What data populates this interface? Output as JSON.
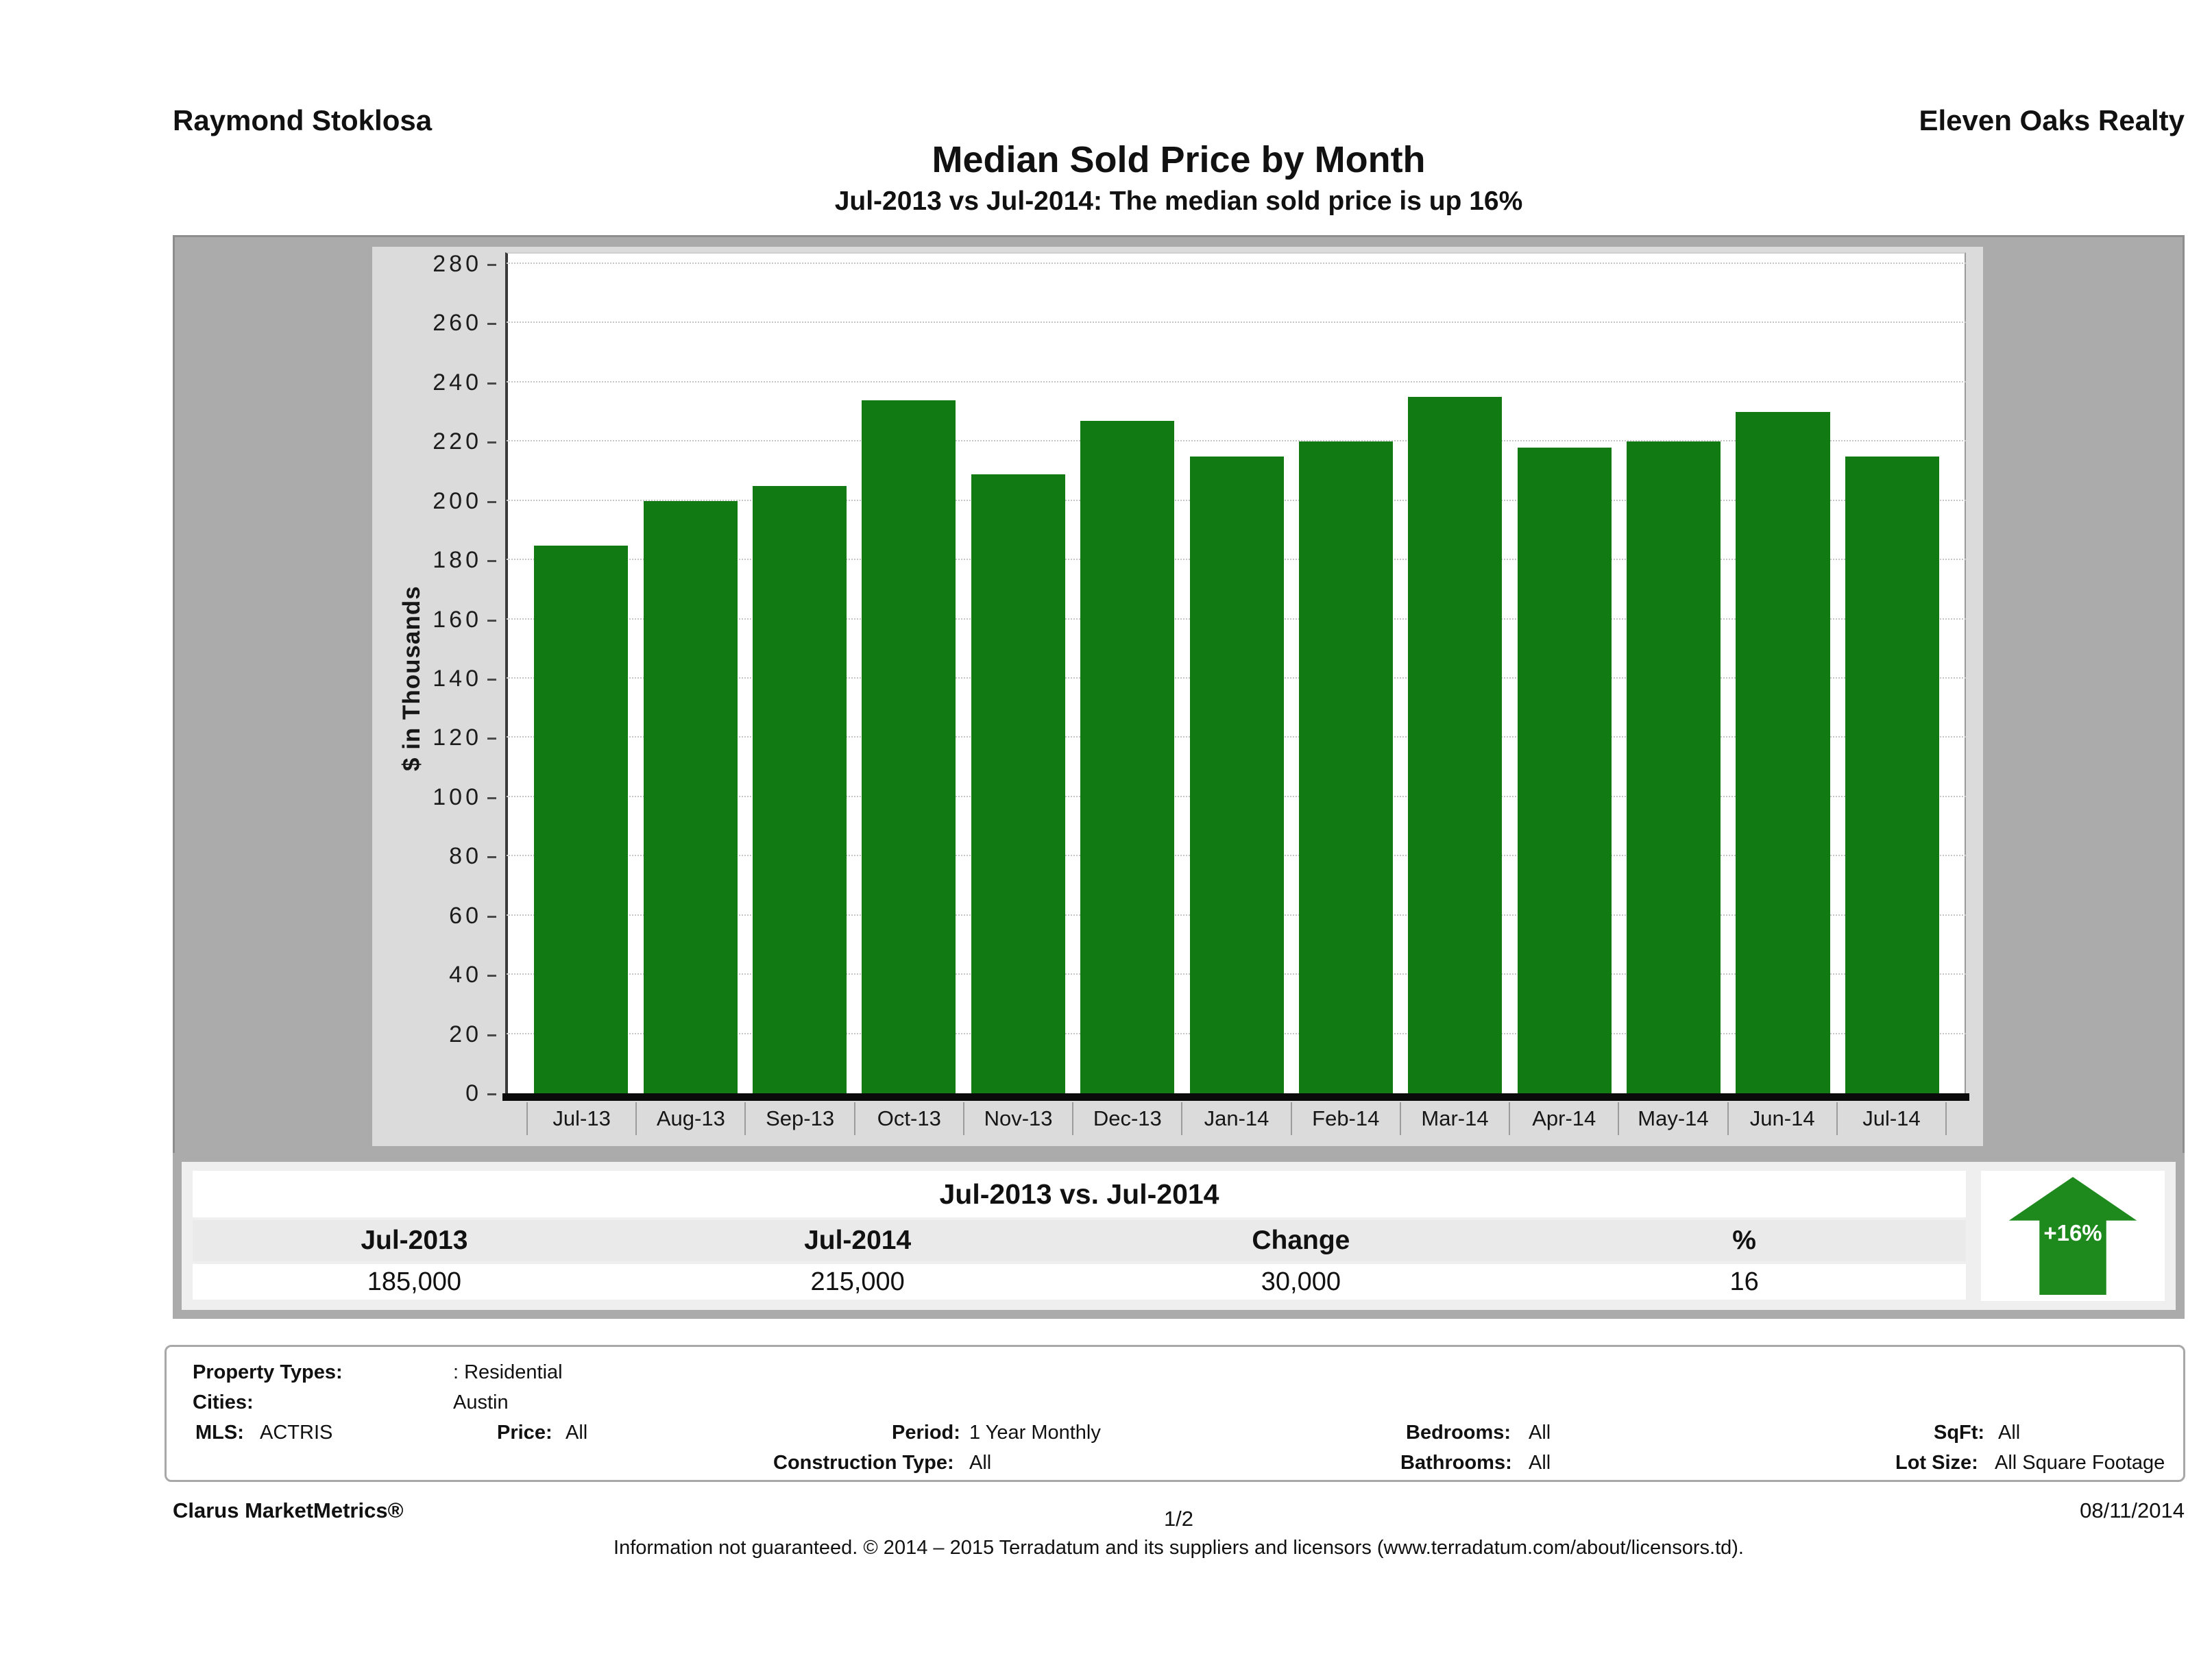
{
  "header": {
    "agent_name": "Raymond Stoklosa",
    "company_name": "Eleven Oaks Realty"
  },
  "title": "Median Sold Price by Month",
  "subtitle": "Jul-2013 vs Jul-2014: The median sold price is up 16%",
  "chart_data": {
    "type": "bar",
    "title": "Median Sold Price by Month",
    "categories": [
      "Jul-13",
      "Aug-13",
      "Sep-13",
      "Oct-13",
      "Nov-13",
      "Dec-13",
      "Jan-14",
      "Feb-14",
      "Mar-14",
      "Apr-14",
      "May-14",
      "Jun-14",
      "Jul-14"
    ],
    "values": [
      185,
      200,
      205,
      234,
      209,
      227,
      215,
      220,
      235,
      218,
      220,
      230,
      215
    ],
    "xlabel": "",
    "ylabel": "$ in Thousands",
    "ylim": [
      0,
      280
    ],
    "ytick_step": 20,
    "grid": "horizontal-dotted",
    "legend": "none",
    "bar_color": "#127a12"
  },
  "summary": {
    "title": "Jul-2013 vs. Jul-2014",
    "columns": [
      "Jul-2013",
      "Jul-2014",
      "Change",
      "%"
    ],
    "values": [
      "185,000",
      "215,000",
      "30,000",
      "16"
    ],
    "badge": {
      "label": "+16%",
      "direction": "up",
      "color": "#1e8a1e"
    }
  },
  "filters": {
    "property_types_label": "Property Types:",
    "property_types_value": ": Residential",
    "cities_label": "Cities:",
    "cities_value": "Austin",
    "mls_label": "MLS:",
    "mls_value": "ACTRIS",
    "price_label": "Price:",
    "price_value": "All",
    "period_label": "Period:",
    "period_value": "1 Year Monthly",
    "construction_label": "Construction Type:",
    "construction_value": "All",
    "bedrooms_label": "Bedrooms:",
    "bedrooms_value": "All",
    "bathrooms_label": "Bathrooms:",
    "bathrooms_value": "All",
    "sqft_label": "SqFt:",
    "sqft_value": "All",
    "lot_label": "Lot Size:",
    "lot_value": "All Square Footage"
  },
  "footer": {
    "brand": "Clarus MarketMetrics®",
    "page": "1/2",
    "date": "08/11/2014",
    "disclaimer": "Information not guaranteed. © 2014 – 2015 Terradatum and its suppliers and licensors (www.terradatum.com/about/licensors.td)."
  }
}
